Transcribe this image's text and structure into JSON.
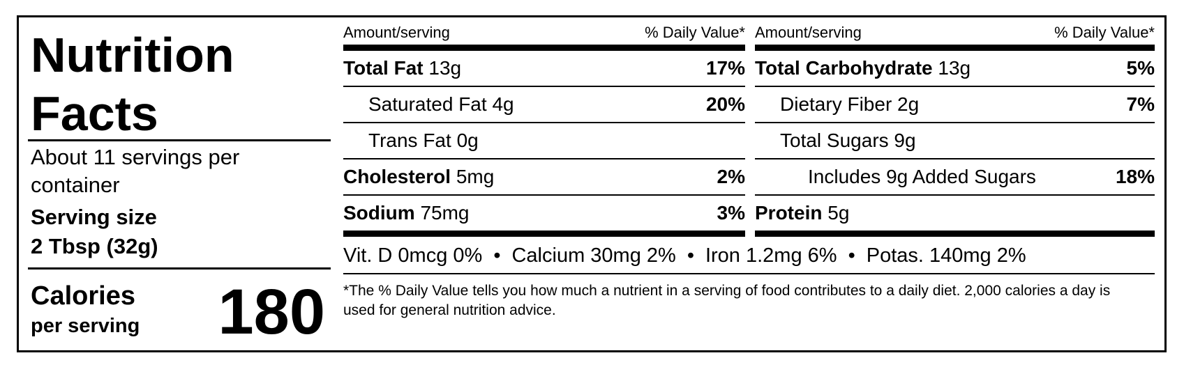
{
  "title": [
    "Nutrition",
    "Facts"
  ],
  "servings": "About 11 servings per container",
  "serving_size_label": "Serving size",
  "serving_size": "2 Tbsp (32g)",
  "calories_label": "Calories",
  "calories_sub": "per serving",
  "calories": 180,
  "columns": [
    {
      "amount_header": "Amount/serving",
      "dv_header": "% Daily Value*",
      "rows": [
        {
          "name": "Total Fat",
          "amount": "13g",
          "dv": "17%"
        },
        {
          "name": "Saturated Fat",
          "amount": "4g",
          "dv": "20%"
        },
        {
          "name": "Trans Fat",
          "amount": "0g"
        },
        {
          "name": "Cholesterol",
          "amount": "5mg",
          "dv": "2%"
        },
        {
          "name": "Sodium",
          "amount": "75mg",
          "dv": "3%"
        }
      ]
    },
    {
      "amount_header": "Amount/serving",
      "dv_header": "% Daily Value*",
      "rows": [
        {
          "name": "Total Carbohydrate",
          "amount": "13g",
          "dv": "5%"
        },
        {
          "name": "Dietary Fiber",
          "amount": "2g",
          "dv": "7%"
        },
        {
          "name": "Total Sugars",
          "amount": "9g"
        },
        {
          "name": "Includes 9g Added Sugars",
          "dv": "18%"
        },
        {
          "name": "Protein",
          "amount": "5g"
        }
      ]
    }
  ],
  "vitamins": [
    "Vit. D 0mcg 0%",
    "Calcium 30mg 2%",
    "Iron 1.2mg 6%",
    "Potas. 140mg 2%"
  ],
  "footnote": "*The % Daily Value tells you how much a nutrient in a serving of food contributes to a daily diet. 2,000 calories a day is used for general nutrition advice."
}
